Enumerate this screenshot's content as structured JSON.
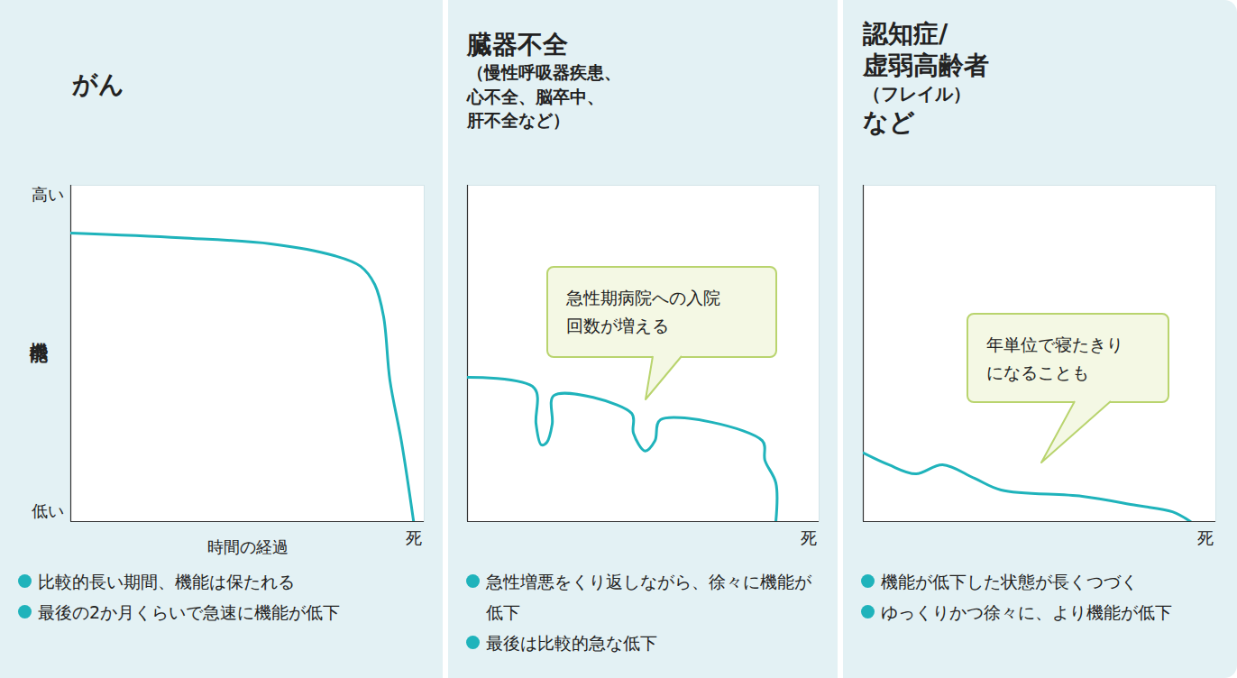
{
  "chart_data": [
    {
      "type": "line",
      "title": "がん",
      "color": "#1fb3bb",
      "x": [
        0,
        31,
        56.6,
        74.5,
        82,
        86,
        88.5,
        90.3,
        93.6,
        97
      ],
      "values": [
        85.8,
        84.4,
        82.6,
        79.1,
        75.9,
        70.5,
        61,
        42,
        23.6,
        0
      ],
      "xlim": [
        0,
        100
      ],
      "ylim": [
        0,
        100
      ],
      "xticks": [
        {
          "value": 97,
          "label": "死"
        }
      ],
      "yticks": [
        {
          "value": 97,
          "label": "高い"
        },
        {
          "value": 3,
          "label": "低い"
        }
      ],
      "xlabel": "時間の経過",
      "ylabel": "機能",
      "notes": [
        "比較的長い期間、機能は保たれる",
        "最後の2か月くらいで急速に機能が低下"
      ]
    },
    {
      "type": "line",
      "title": "臓器不全",
      "subtitle": "（慢性呼吸器疾患、\n心不全、脳卒中、\n肝不全など）",
      "color": "#1fb3bb",
      "x": [
        0,
        19,
        19.5,
        21,
        22.6,
        24.1,
        24.6,
        46.7,
        47.2,
        50.5,
        53.3,
        54.9,
        83.8,
        84.6,
        87.7,
        87.7
      ],
      "values": [
        42.9,
        39.7,
        29,
        22.8,
        23.6,
        29,
        37.5,
        32.2,
        26.3,
        21,
        24,
        30.3,
        24.1,
        18.2,
        11.5,
        0
      ],
      "xlim": [
        0,
        100
      ],
      "ylim": [
        0,
        100
      ],
      "xticks": [
        {
          "value": 97,
          "label": "死"
        }
      ],
      "tick_labels": "x",
      "annotations": [
        {
          "text": "急性期病院への入院\n回数が増える"
        }
      ],
      "notes": [
        "急性増悪をくり返しながら、徐々に機能が低下",
        "最後は比較的急な低下"
      ]
    },
    {
      "type": "line",
      "title": "認知症/\n虚弱高齢者\n（フレイル）\nなど",
      "color": "#1fb3bb",
      "x": [
        0,
        7.2,
        14.8,
        22.5,
        31.5,
        39.1,
        62.1,
        77.5,
        87.7,
        92.8
      ],
      "values": [
        20.4,
        16.9,
        14.2,
        16.9,
        12.9,
        9.4,
        7.5,
        4.8,
        2.9,
        0
      ],
      "xlim": [
        0,
        100
      ],
      "ylim": [
        0,
        100
      ],
      "xticks": [
        {
          "value": 97,
          "label": "死"
        }
      ],
      "tick_labels": "x",
      "annotations": [
        {
          "text": "年単位で寝たきり\nになることも"
        }
      ],
      "notes": [
        "機能が低下した状態が長くつづく",
        "ゆっくりかつ徐々に、より機能が低下"
      ]
    }
  ]
}
